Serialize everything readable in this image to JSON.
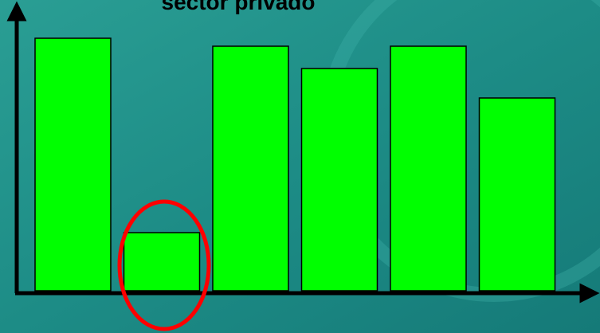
{
  "chart_data": {
    "type": "bar",
    "title": "sector privado",
    "categories": [
      null,
      null,
      null,
      null,
      null,
      null
    ],
    "values": [
      317,
      73,
      307,
      279,
      307,
      242
    ],
    "color": "#00ff00",
    "ylim": [
      0,
      340
    ]
  }
}
